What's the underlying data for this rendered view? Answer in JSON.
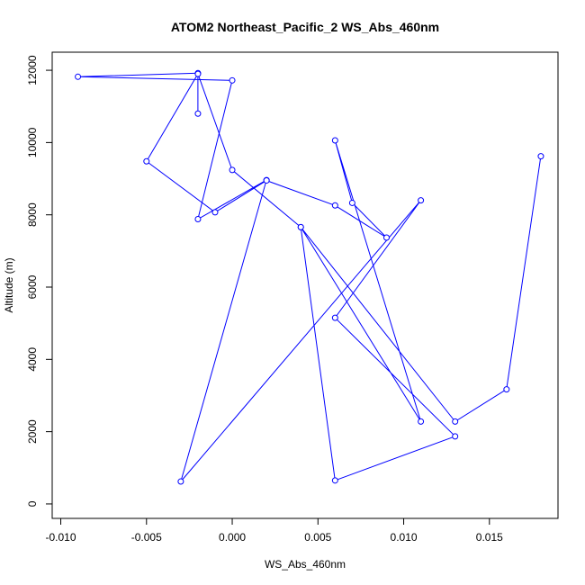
{
  "chart_data": {
    "type": "line",
    "title": "ATOM2 Northeast_Pacific_2 WS_Abs_460nm",
    "xlabel": "WS_Abs_460nm",
    "ylabel": "Altitude (m)",
    "xlim": [
      -0.0105,
      0.019
    ],
    "ylim": [
      -400,
      12500
    ],
    "x_ticks": [
      -0.01,
      -0.005,
      0.0,
      0.005,
      0.01,
      0.015
    ],
    "x_tick_labels": [
      "-0.010",
      "-0.005",
      "0.000",
      "0.005",
      "0.010",
      "0.015"
    ],
    "y_ticks": [
      0,
      2000,
      4000,
      6000,
      8000,
      10000,
      12000
    ],
    "y_tick_labels": [
      "0",
      "2000",
      "4000",
      "6000",
      "8000",
      "10000",
      "12000"
    ],
    "grid": false,
    "series_color": "#0000ff",
    "series": [
      {
        "x": [
          -0.002,
          -0.002,
          -0.009,
          0.0,
          -0.002,
          0.002,
          -0.003,
          0.011,
          0.006,
          0.013,
          0.006,
          0.004,
          0.0,
          -0.002,
          -0.005,
          -0.001,
          0.002,
          0.006,
          0.009,
          0.007,
          0.006,
          0.011,
          0.004,
          0.013,
          0.016,
          0.018
        ],
        "y": [
          10800,
          11920,
          11820,
          11720,
          7880,
          8960,
          620,
          8400,
          5150,
          1870,
          650,
          7660,
          9240,
          11900,
          9480,
          8070,
          8950,
          8260,
          7370,
          8330,
          10060,
          2280,
          7660,
          2280,
          3170,
          9620
        ]
      }
    ]
  }
}
